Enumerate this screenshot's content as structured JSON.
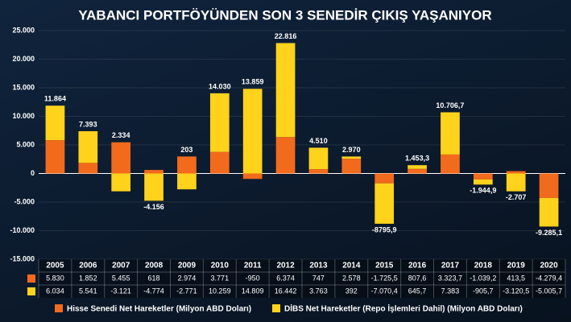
{
  "chart_data": {
    "type": "stacked_bar",
    "title": "YABANCI PORTFÖYÜNDEN SON 3 SENEDİR ÇIKIŞ YAŞANIYOR",
    "categories": [
      "2005",
      "2006",
      "2007",
      "2008",
      "2009",
      "2010",
      "2011",
      "2012",
      "2013",
      "2014",
      "2015",
      "2016",
      "2017",
      "2018",
      "2019",
      "2020"
    ],
    "series": [
      {
        "name": "Hisse Senedi Net Hareketler (Milyon ABD Doları)",
        "color": "#f26a1b",
        "values": [
          5830,
          1852,
          5455,
          618,
          2974,
          3771,
          -950,
          6374,
          747,
          2578,
          -1725.5,
          807.6,
          3323.7,
          -1039.2,
          413.5,
          -4279.4
        ],
        "value_labels": [
          "5.830",
          "1.852",
          "5.455",
          "618",
          "2.974",
          "3.771",
          "-950",
          "6.374",
          "747",
          "2.578",
          "-1.725,5",
          "807,6",
          "3.323,7",
          "-1.039,2",
          "413,5",
          "-4.279,4"
        ]
      },
      {
        "name": "DİBS Net Hareketler (Repo İşlemleri Dahil) (Milyon ABD Doları)",
        "color": "#ffd21c",
        "values": [
          6034,
          5541,
          -3121,
          -4774,
          -2771,
          10259,
          14809,
          16442,
          3763,
          392,
          -7070.4,
          645.7,
          7383,
          -905.7,
          -3120.5,
          -5005.7
        ],
        "value_labels": [
          "6.034",
          "5.541",
          "-3.121",
          "-4.774",
          "-2.771",
          "10.259",
          "14.809",
          "16.442",
          "3.763",
          "392",
          "-7.070,4",
          "645,7",
          "7.383",
          "-905,7",
          "-3.120,5",
          "-5.005,7"
        ]
      }
    ],
    "totals": {
      "values": [
        11864,
        7393,
        2334,
        -4156,
        203,
        14030,
        13859,
        22816,
        4510,
        2970,
        -8795.9,
        1453.3,
        10706.7,
        -1944.9,
        -2707,
        -9285.1
      ],
      "value_labels": [
        "11.864",
        "7.393",
        "2.334",
        "-4.156",
        "203",
        "14.030",
        "13.859",
        "22.816",
        "4.510",
        "2.970",
        "-8795,9",
        "1.453,3",
        "10.706,7",
        "-1.944,9",
        "-2.707",
        "-9.285,1"
      ]
    },
    "ylim": [
      -15000,
      25000
    ],
    "yticks": [
      {
        "value": -15000,
        "label": "-15.000"
      },
      {
        "value": -10000,
        "label": "-10.000"
      },
      {
        "value": -5000,
        "label": "-5.000"
      },
      0,
      {
        "value": 5000,
        "label": "5.000"
      },
      {
        "value": 10000,
        "label": "10.000"
      },
      {
        "value": 15000,
        "label": "15.000"
      },
      {
        "value": 20000,
        "label": "20.000"
      },
      {
        "value": 25000,
        "label": "25.000"
      }
    ],
    "grid": true
  }
}
